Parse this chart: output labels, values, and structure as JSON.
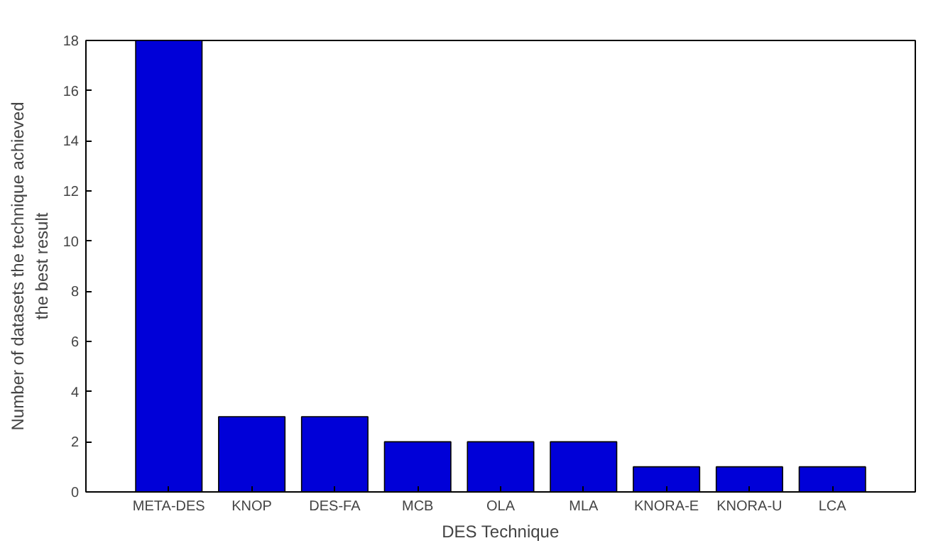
{
  "chart_data": {
    "type": "bar",
    "xlabel": "DES Technique",
    "ylabel": "Number of datasets the technique achieved\nthe best result",
    "categories": [
      "META-DES",
      "KNOP",
      "DES-FA",
      "MCB",
      "OLA",
      "MLA",
      "KNORA-E",
      "KNORA-U",
      "LCA"
    ],
    "values": [
      18,
      3,
      3,
      2,
      2,
      2,
      1,
      1,
      1
    ],
    "color": "#0000d8",
    "ylim": [
      0,
      18
    ],
    "yticks": [
      0,
      2,
      4,
      6,
      8,
      10,
      12,
      14,
      16,
      18
    ],
    "grid": false
  }
}
